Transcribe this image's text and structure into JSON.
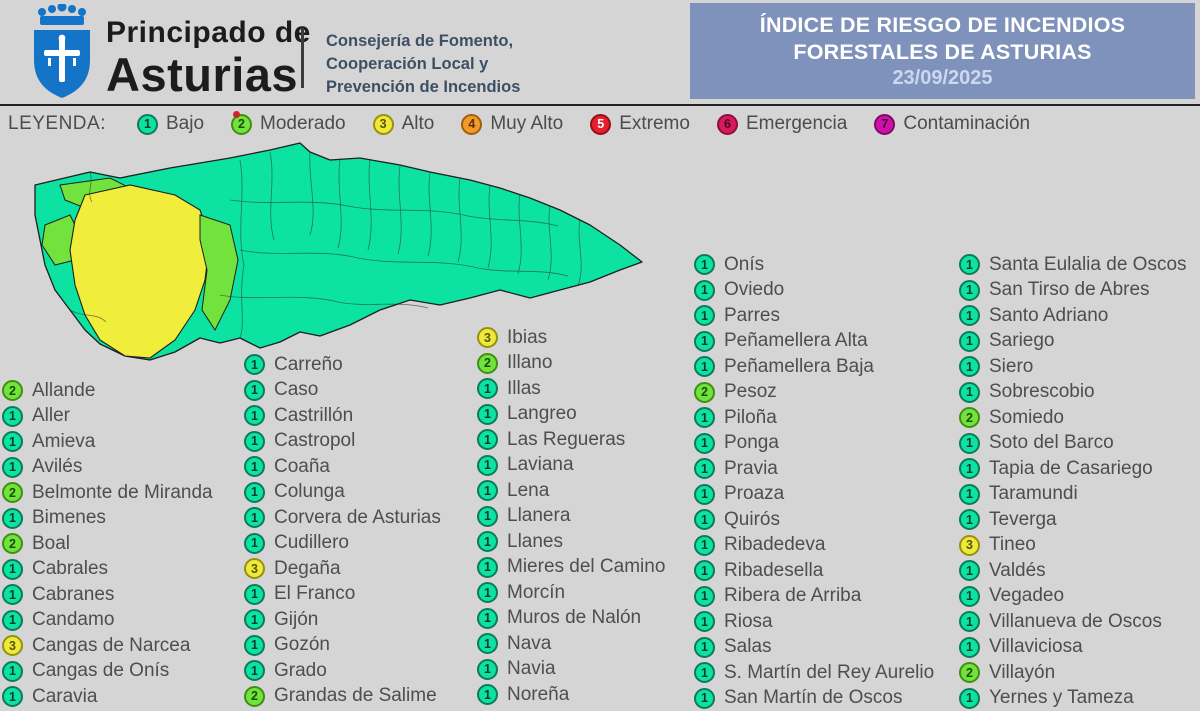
{
  "header": {
    "org_line1": "Principado de",
    "org_line2": "Asturias",
    "dept_line1": "Consejería de Fomento,",
    "dept_line2": "Cooperación Local y",
    "dept_line3": "Prevención de Incendios",
    "title_line1": "ÍNDICE DE RIESGO DE INCENDIOS",
    "title_line2": "FORESTALES DE ASTURIAS",
    "date": "23/09/2025",
    "panel_color": "#7e92bb"
  },
  "legend": {
    "label": "LEYENDA:",
    "items": [
      {
        "level": "1",
        "name": "Bajo",
        "color": "#0ce2a2",
        "ring": "#0f7a57",
        "digit_color": "#083b2b"
      },
      {
        "level": "2",
        "name": "Moderado",
        "color": "#72e23c",
        "ring": "#3f8f14",
        "digit_color": "#174f05"
      },
      {
        "level": "3",
        "name": "Alto",
        "color": "#efe93b",
        "ring": "#97900e",
        "digit_color": "#565600"
      },
      {
        "level": "4",
        "name": "Muy Alto",
        "color": "#f2992b",
        "ring": "#a05f07",
        "digit_color": "#5c3200"
      },
      {
        "level": "5",
        "name": "Extremo",
        "color": "#e51f2f",
        "ring": "#941016",
        "digit_color": "#ffffff"
      },
      {
        "level": "6",
        "name": "Emergencia",
        "color": "#d61a5e",
        "ring": "#8c0f3d",
        "digit_color": "#4d021c"
      },
      {
        "level": "7",
        "name": "Contaminación",
        "color": "#ce12a8",
        "ring": "#7d0a66",
        "digit_color": "#43023c"
      }
    ]
  },
  "map": {
    "region": "Asturias",
    "colors": {
      "low": "#0ce2a2",
      "moderate": "#72e23c",
      "high": "#f0ee3a",
      "border": "#1f1f1f"
    }
  },
  "municipalities": {
    "columns": [
      [
        {
          "level": 2,
          "name": "Allande"
        },
        {
          "level": 1,
          "name": "Aller"
        },
        {
          "level": 1,
          "name": "Amieva"
        },
        {
          "level": 1,
          "name": "Avilés"
        },
        {
          "level": 2,
          "name": "Belmonte de Miranda"
        },
        {
          "level": 1,
          "name": "Bimenes"
        },
        {
          "level": 2,
          "name": "Boal"
        },
        {
          "level": 1,
          "name": "Cabrales"
        },
        {
          "level": 1,
          "name": "Cabranes"
        },
        {
          "level": 1,
          "name": "Candamo"
        },
        {
          "level": 3,
          "name": "Cangas de Narcea"
        },
        {
          "level": 1,
          "name": "Cangas de Onís"
        },
        {
          "level": 1,
          "name": "Caravia"
        }
      ],
      [
        {
          "level": 1,
          "name": "Carreño"
        },
        {
          "level": 1,
          "name": "Caso"
        },
        {
          "level": 1,
          "name": "Castrillón"
        },
        {
          "level": 1,
          "name": "Castropol"
        },
        {
          "level": 1,
          "name": "Coaña"
        },
        {
          "level": 1,
          "name": "Colunga"
        },
        {
          "level": 1,
          "name": "Corvera de Asturias"
        },
        {
          "level": 1,
          "name": "Cudillero"
        },
        {
          "level": 3,
          "name": "Degaña"
        },
        {
          "level": 1,
          "name": "El Franco"
        },
        {
          "level": 1,
          "name": "Gijón"
        },
        {
          "level": 1,
          "name": "Gozón"
        },
        {
          "level": 1,
          "name": "Grado"
        },
        {
          "level": 2,
          "name": "Grandas de Salime"
        }
      ],
      [
        {
          "level": 3,
          "name": "Ibias"
        },
        {
          "level": 2,
          "name": "Illano"
        },
        {
          "level": 1,
          "name": "Illas"
        },
        {
          "level": 1,
          "name": "Langreo"
        },
        {
          "level": 1,
          "name": "Las Regueras"
        },
        {
          "level": 1,
          "name": "Laviana"
        },
        {
          "level": 1,
          "name": "Lena"
        },
        {
          "level": 1,
          "name": "Llanera"
        },
        {
          "level": 1,
          "name": "Llanes"
        },
        {
          "level": 1,
          "name": "Mieres del Camino"
        },
        {
          "level": 1,
          "name": "Morcín"
        },
        {
          "level": 1,
          "name": "Muros de Nalón"
        },
        {
          "level": 1,
          "name": "Nava"
        },
        {
          "level": 1,
          "name": "Navia"
        },
        {
          "level": 1,
          "name": "Noreña"
        }
      ],
      [
        {
          "level": 1,
          "name": "Onís"
        },
        {
          "level": 1,
          "name": "Oviedo"
        },
        {
          "level": 1,
          "name": "Parres"
        },
        {
          "level": 1,
          "name": "Peñamellera Alta"
        },
        {
          "level": 1,
          "name": "Peñamellera Baja"
        },
        {
          "level": 2,
          "name": "Pesoz"
        },
        {
          "level": 1,
          "name": "Piloña"
        },
        {
          "level": 1,
          "name": "Ponga"
        },
        {
          "level": 1,
          "name": "Pravia"
        },
        {
          "level": 1,
          "name": "Proaza"
        },
        {
          "level": 1,
          "name": "Quirós"
        },
        {
          "level": 1,
          "name": "Ribadedeva"
        },
        {
          "level": 1,
          "name": "Ribadesella"
        },
        {
          "level": 1,
          "name": "Ribera de Arriba"
        },
        {
          "level": 1,
          "name": "Riosa"
        },
        {
          "level": 1,
          "name": "Salas"
        },
        {
          "level": 1,
          "name": "S. Martín del Rey Aurelio"
        },
        {
          "level": 1,
          "name": "San Martín de Oscos"
        }
      ],
      [
        {
          "level": 1,
          "name": "Santa Eulalia de Oscos"
        },
        {
          "level": 1,
          "name": "San Tirso de Abres"
        },
        {
          "level": 1,
          "name": "Santo Adriano"
        },
        {
          "level": 1,
          "name": "Sariego"
        },
        {
          "level": 1,
          "name": "Siero"
        },
        {
          "level": 1,
          "name": "Sobrescobio"
        },
        {
          "level": 2,
          "name": "Somiedo"
        },
        {
          "level": 1,
          "name": "Soto del Barco"
        },
        {
          "level": 1,
          "name": "Tapia de Casariego"
        },
        {
          "level": 1,
          "name": "Taramundi"
        },
        {
          "level": 1,
          "name": "Teverga"
        },
        {
          "level": 3,
          "name": "Tineo"
        },
        {
          "level": 1,
          "name": "Valdés"
        },
        {
          "level": 1,
          "name": "Vegadeo"
        },
        {
          "level": 1,
          "name": "Villanueva de Oscos"
        },
        {
          "level": 1,
          "name": "Villaviciosa"
        },
        {
          "level": 2,
          "name": "Villayón"
        },
        {
          "level": 1,
          "name": "Yernes y Tameza"
        }
      ]
    ]
  }
}
